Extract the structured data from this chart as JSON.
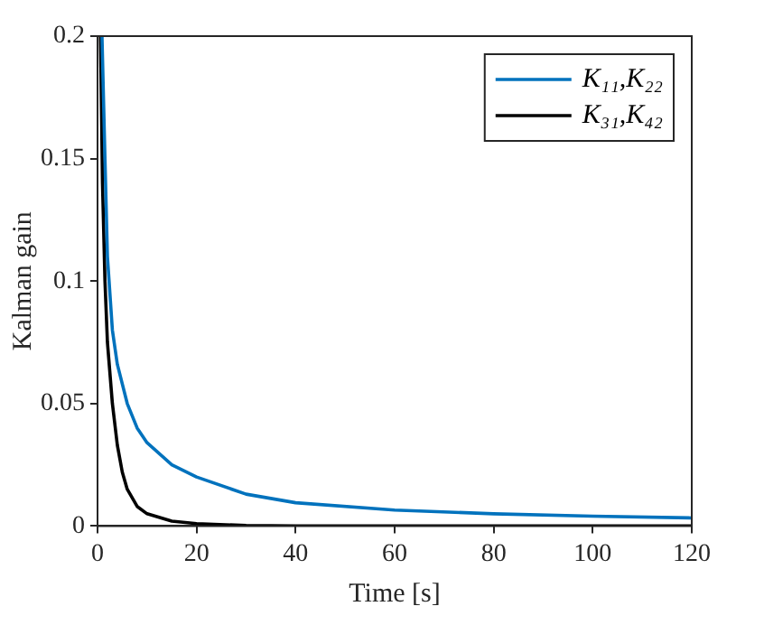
{
  "chart_data": {
    "type": "line",
    "xlabel": "Time [s]",
    "ylabel": "Kalman gain",
    "xlim": [
      0,
      120
    ],
    "xticks": [
      0,
      20,
      40,
      60,
      80,
      100,
      120
    ],
    "ylim": [
      0,
      0.2
    ],
    "yticks": [
      0,
      0.05,
      0.1,
      0.15,
      0.2
    ],
    "grid": false,
    "legend": "top right",
    "marker": "none",
    "line_style": "solid",
    "series": [
      {
        "name": "K₁₁,K₂₂",
        "color": "#0072bd",
        "x": [
          0.9,
          1.5,
          2,
          3,
          4,
          6,
          8,
          10,
          15,
          20,
          30,
          40,
          60,
          80,
          100,
          120
        ],
        "values": [
          0.2,
          0.15,
          0.11,
          0.08,
          0.066,
          0.05,
          0.04,
          0.034,
          0.025,
          0.02,
          0.013,
          0.0095,
          0.0065,
          0.005,
          0.004,
          0.0033
        ]
      },
      {
        "name": "K₃₁,K₄₂",
        "color": "#000000",
        "x": [
          0.6,
          1,
          1.5,
          2,
          3,
          4,
          5,
          6,
          8,
          10,
          15,
          20,
          30,
          40,
          120
        ],
        "values": [
          0.2,
          0.14,
          0.1,
          0.075,
          0.05,
          0.033,
          0.022,
          0.015,
          0.008,
          0.005,
          0.002,
          0.001,
          0.0002,
          0,
          0
        ]
      }
    ]
  }
}
